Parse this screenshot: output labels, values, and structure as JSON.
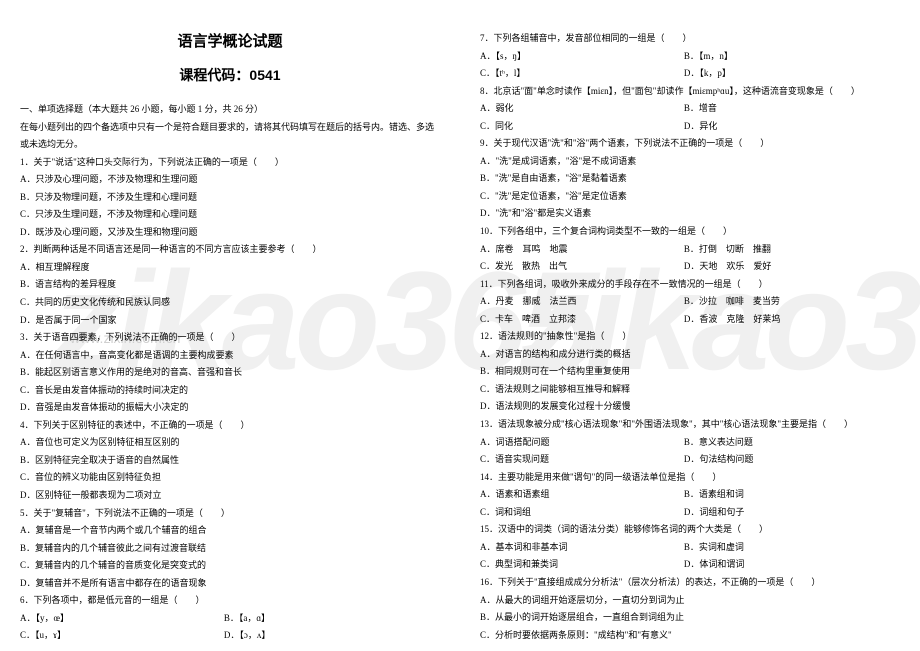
{
  "watermark": {
    "text": "zikao365",
    "url": "www.zixin.com.cn",
    "color": "#f0f0f0",
    "url_color": "#d0d0d0"
  },
  "header": {
    "title": "语言学概论试题",
    "subtitle_prefix": "课程代码：",
    "subtitle_code": "0541"
  },
  "left": {
    "section": "一、单项选择题（本大题共 26 小题，每小题 1 分，共 26 分）",
    "instruction": "在每小题列出的四个备选项中只有一个是符合题目要求的，请将其代码填写在题后的括号内。错选、多选或未选均无分。",
    "q1": "1．关于\"说话\"这种口头交际行为，下列说法正确的一项是（　　）",
    "q1a": "A．只涉及心理问题，不涉及物理和生理问题",
    "q1b": "B．只涉及物理问题，不涉及生理和心理问题",
    "q1c": "C．只涉及生理问题，不涉及物理和心理问题",
    "q1d": "D．既涉及心理问题，又涉及生理和物理问题",
    "q2": "2．判断两种话是不同语言还是同一种语言的不同方言应该主要参考（　　）",
    "q2a": "A．相互理解程度",
    "q2b": "B．语言结构的差异程度",
    "q2c": "C．共同的历史文化传统和民族认同感",
    "q2d": "D．是否属于同一个国家",
    "q3": "3．关于语音四要素，下列说法不正确的一项是（　　）",
    "q3a": "A．在任何语言中，音高变化都是语调的主要构成要素",
    "q3b": "B．能起区别语言意义作用的是绝对的音高、音强和音长",
    "q3c": "C．音长是由发音体振动的持续时间决定的",
    "q3d": "D．音强是由发音体振动的振幅大小决定的",
    "q4": "4．下列关于区别特征的表述中，不正确的一项是（　　）",
    "q4a": "A．音位也可定义为区别特征相互区别的",
    "q4b": "B．区别特征完全取决于语音的自然属性",
    "q4c": "C．音位的辨义功能由区别特征负担",
    "q4d": "D．区别特征一般都表现为二项对立",
    "q5": "5．关于\"复辅音\"，下列说法不正确的一项是（　　）",
    "q5a": "A．复辅音是一个音节内两个或几个辅音的组合",
    "q5b": "B．复辅音内的几个辅音彼此之间有过渡音联结",
    "q5c": "C．复辅音内的几个辅音的音质变化是突变式的",
    "q5d": "D．复辅音并不是所有语言中都存在的语音现象",
    "q6": "6．下列各项中，都是低元音的一组是（　　）",
    "q6a": "A．【y，œ】",
    "q6b": "B．【a，ɑ】",
    "q6c": "C．【u，ɤ】",
    "q6d": "D．【ɔ，ʌ】"
  },
  "right": {
    "q7": "7．下列各组辅音中，发音部位相同的一组是（　　）",
    "q7a": "A．【s，ŋ】",
    "q7b": "B．【m，n】",
    "q7c": "C．【tʰ，l】",
    "q7d": "D．【k，p】",
    "q8": "8．北京话\"面\"单念时读作【miɛn】，但\"面包\"却读作【miɛmpʰɑu】，这种语流音变现象是（　　）",
    "q8a": "A．弱化",
    "q8b": "B．增音",
    "q8c": "C．同化",
    "q8d": "D．异化",
    "q9": "9．关于现代汉语\"洗\"和\"浴\"两个语素，下列说法不正确的一项是（　　）",
    "q9a": "A．\"洗\"是成词语素，\"浴\"是不成词语素",
    "q9b": "B．\"洗\"是自由语素，\"浴\"是黏着语素",
    "q9c": "C．\"洗\"是定位语素，\"浴\"是定位语素",
    "q9d": "D．\"洗\"和\"浴\"都是实义语素",
    "q10": "10．下列各组中，三个复合词构词类型不一致的一组是（　　）",
    "q10a": "A．席卷　耳鸣　地震",
    "q10b": "B．打倒　切断　推翻",
    "q10c": "C．发光　散热　出气",
    "q10d": "D．天地　欢乐　爱好",
    "q11": "11．下列各组词，吸收外来成分的手段存在不一致情况的一组是（　　）",
    "q11a": "A．丹麦　挪威　法兰西",
    "q11b": "B．沙拉　咖啡　麦当劳",
    "q11c": "C．卡车　啤酒　立邦漆",
    "q11d": "D．香波　克隆　好莱坞",
    "q12": "12．语法规则的\"抽象性\"是指（　　）",
    "q12a": "A．对语言的结构和成分进行类的概括",
    "q12b": "B．相同规则可在一个结构里重复使用",
    "q12c": "C．语法规则之间能够相互推导和解释",
    "q12d": "D．语法规则的发展变化过程十分缓慢",
    "q13": "13．语法现象被分成\"核心语法现象\"和\"外围语法现象\"，其中\"核心语法现象\"主要是指（　　）",
    "q13a": "A．词语搭配问题",
    "q13b": "B．意义表达问题",
    "q13c": "C．语音实现问题",
    "q13d": "D．句法结构问题",
    "q14": "14．主要功能是用来做\"谓句\"的同一级语法单位是指（　　）",
    "q14a": "A．语素和语素组",
    "q14b": "B．语素组和词",
    "q14c": "C．词和词组",
    "q14d": "D．词组和句子",
    "q15": "15．汉语中的词类（词的语法分类）能够修饰名词的两个大类是（　　）",
    "q15a": "A．基本词和非基本词",
    "q15b": "B．实词和虚词",
    "q15c": "C．典型词和兼类词",
    "q15d": "D．体词和谓词",
    "q16": "16．下列关于\"直接组成成分分析法\"（层次分析法）的表达，不正确的一项是（　　）",
    "q16a": "A．从最大的词组开始逐层切分，一直切分到词为止",
    "q16b": "B．从最小的词开始逐层组合，一直组合到词组为止",
    "q16c": "C．分析时要依据两条原则：\"成结构\"和\"有意义\""
  }
}
